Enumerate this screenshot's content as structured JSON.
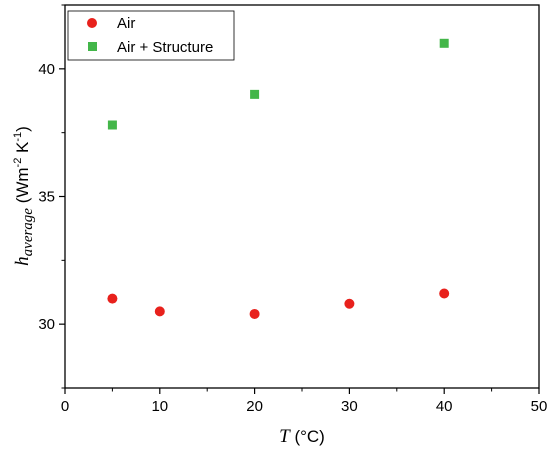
{
  "chart_data": {
    "type": "scatter",
    "xlabel": {
      "symbol": "T",
      "unit": " (°C)"
    },
    "ylabel": {
      "symbol": "h",
      "subscript": "average",
      "unit_pre": " (Wm",
      "sup1": "-2",
      "unit_mid": " K",
      "sup2": "-1",
      "unit_post": ")"
    },
    "xlim": [
      0,
      50
    ],
    "ylim": [
      27.5,
      42.5
    ],
    "xticks": [
      0,
      10,
      20,
      30,
      40,
      50
    ],
    "yticks": [
      30,
      35,
      40
    ],
    "x_tick_labels": [
      "0",
      "10",
      "20",
      "30",
      "40",
      "50"
    ],
    "y_tick_labels": [
      "30",
      "35",
      "40"
    ],
    "grid": false,
    "legend_position": "top-left",
    "series": [
      {
        "name": "Air",
        "marker": "circle",
        "color": "#e8211c",
        "points": [
          [
            5,
            31.0
          ],
          [
            10,
            30.5
          ],
          [
            20,
            30.4
          ],
          [
            30,
            30.8
          ],
          [
            40,
            31.2
          ]
        ]
      },
      {
        "name": "Air + Structure",
        "marker": "square",
        "color": "#43b649",
        "points": [
          [
            5,
            37.8
          ],
          [
            20,
            39.0
          ],
          [
            40,
            41.0
          ]
        ]
      }
    ]
  }
}
